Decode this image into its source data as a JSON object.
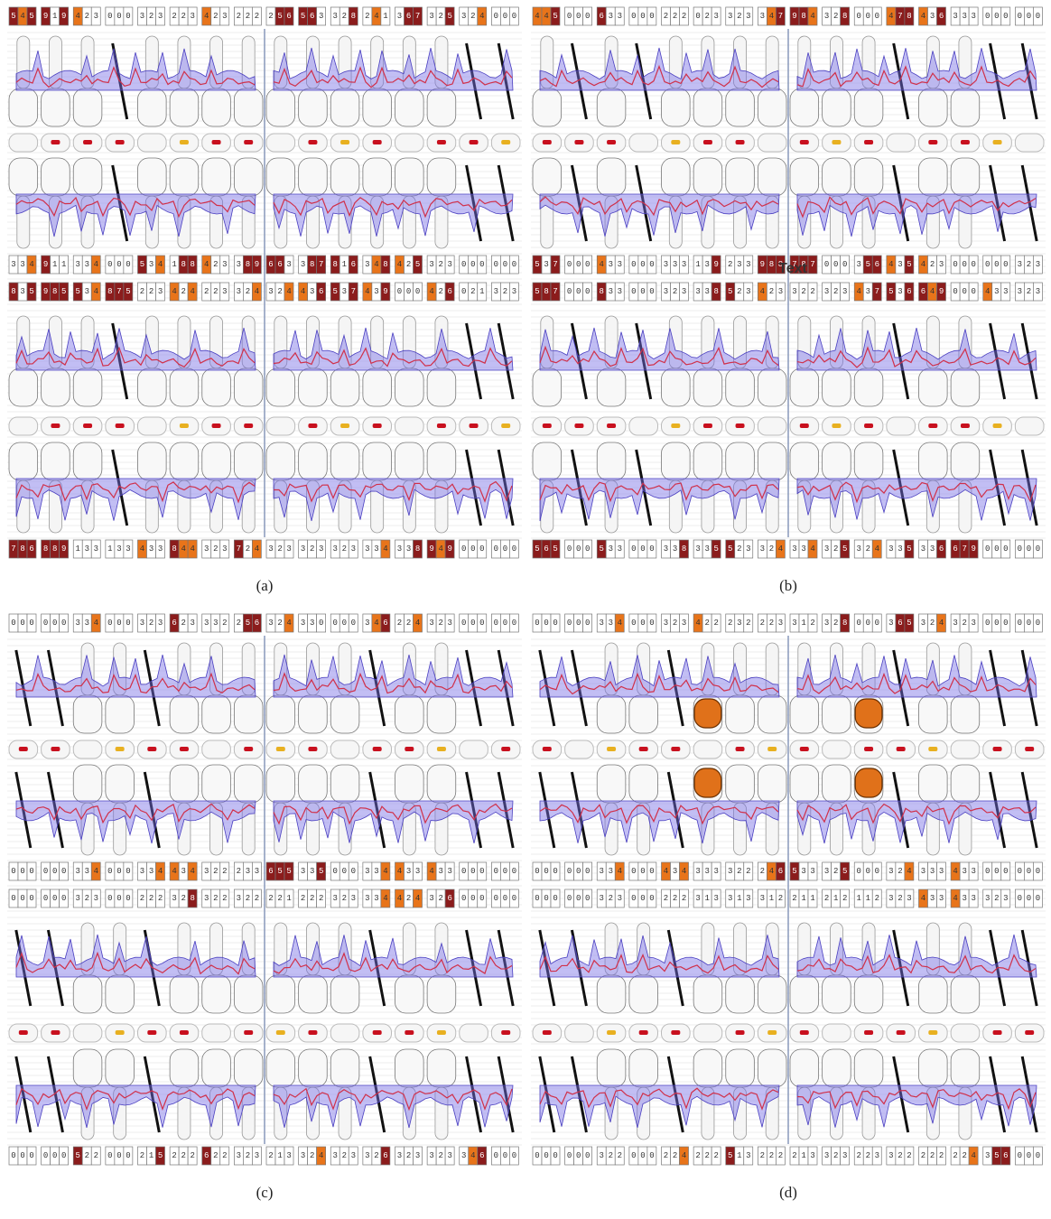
{
  "panels": [
    {
      "caption": "(a)",
      "rows": [
        [
          "545",
          "919",
          "423",
          "000",
          "323",
          "223",
          "423",
          "222",
          "256",
          "563",
          "328",
          "241",
          "367",
          "325",
          "324",
          "000"
        ],
        [
          "334",
          "911",
          "334",
          "000",
          "534",
          "188",
          "423",
          "389",
          "663",
          "387",
          "816",
          "348",
          "425",
          "323",
          "000",
          "000"
        ],
        [
          "835",
          "985",
          "534",
          "875",
          "223",
          "424",
          "223",
          "324",
          "324",
          "436",
          "537",
          "439",
          "000",
          "426",
          "021",
          "323"
        ],
        [
          "786",
          "889",
          "133",
          "133",
          "433",
          "844",
          "323",
          "724",
          "323",
          "323",
          "323",
          "334",
          "338",
          "949",
          "000",
          "000"
        ]
      ]
    },
    {
      "caption": "(b)",
      "annotation": "Text",
      "rows": [
        [
          "445",
          "000",
          "633",
          "000",
          "222",
          "023",
          "323",
          "347",
          "984",
          "328",
          "000",
          "478",
          "436",
          "333",
          "000",
          "000"
        ],
        [
          "537",
          "000",
          "433",
          "000",
          "333",
          "139",
          "233",
          "988",
          "787",
          "000",
          "356",
          "435",
          "423",
          "000",
          "000",
          "323"
        ],
        [
          "587",
          "000",
          "833",
          "000",
          "323",
          "338",
          "523",
          "423",
          "322",
          "323",
          "437",
          "536",
          "649",
          "000",
          "433",
          "323"
        ],
        [
          "565",
          "000",
          "533",
          "000",
          "338",
          "335",
          "523",
          "324",
          "334",
          "325",
          "324",
          "335",
          "336",
          "679",
          "000",
          "000"
        ]
      ]
    },
    {
      "caption": "(c)",
      "rows": [
        [
          "000",
          "000",
          "334",
          "000",
          "323",
          "623",
          "332",
          "256",
          "324",
          "330",
          "000",
          "346",
          "224",
          "323",
          "000",
          "000"
        ],
        [
          "000",
          "000",
          "334",
          "000",
          "334",
          "434",
          "322",
          "233",
          "655",
          "335",
          "000",
          "334",
          "433",
          "433",
          "000",
          "000"
        ],
        [
          "000",
          "000",
          "323",
          "000",
          "222",
          "328",
          "322",
          "322",
          "221",
          "222",
          "323",
          "334",
          "424",
          "326",
          "000",
          "000"
        ],
        [
          "000",
          "000",
          "522",
          "000",
          "215",
          "222",
          "622",
          "323",
          "213",
          "324",
          "323",
          "326",
          "323",
          "323",
          "346",
          "000"
        ]
      ]
    },
    {
      "caption": "(d)",
      "rows": [
        [
          "000",
          "000",
          "334",
          "000",
          "323",
          "422",
          "232",
          "223",
          "312",
          "328",
          "000",
          "365",
          "324",
          "323",
          "000",
          "000"
        ],
        [
          "000",
          "000",
          "334",
          "000",
          "434",
          "333",
          "322",
          "246",
          "533",
          "325",
          "000",
          "324",
          "333",
          "433",
          "000",
          "000"
        ],
        [
          "000",
          "000",
          "323",
          "000",
          "222",
          "313",
          "313",
          "312",
          "211",
          "212",
          "112",
          "323",
          "433",
          "433",
          "323",
          "000"
        ],
        [
          "000",
          "000",
          "322",
          "000",
          "224",
          "222",
          "513",
          "222",
          "213",
          "323",
          "223",
          "322",
          "222",
          "224",
          "356",
          "000"
        ]
      ]
    }
  ]
}
